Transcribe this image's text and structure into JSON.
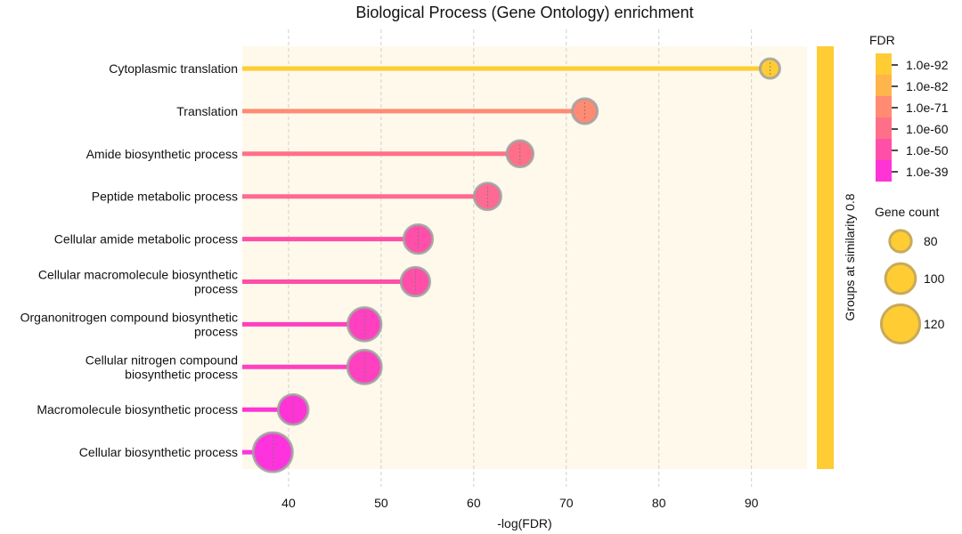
{
  "chart_data": {
    "type": "lollipop",
    "title": "Biological Process (Gene Ontology) enrichment",
    "xlabel": "-log(FDR)",
    "xlim": [
      35,
      96
    ],
    "xticks": [
      40,
      50,
      60,
      70,
      80,
      90
    ],
    "grid": "vertical dashed",
    "group_bar_label": "Groups at similarity 0.8",
    "group_bar_color": "#FFCC33",
    "plot_background": "#FEF9EA",
    "categories": [
      [
        "Cytoplasmic translation"
      ],
      [
        "Translation"
      ],
      [
        "Amide biosynthetic process"
      ],
      [
        "Peptide metabolic process"
      ],
      [
        "Cellular amide metabolic process"
      ],
      [
        "Cellular macromolecule biosynthetic",
        "process"
      ],
      [
        "Organonitrogen compound biosynthetic",
        "process"
      ],
      [
        "Cellular nitrogen compound",
        "biosynthetic process"
      ],
      [
        "Macromolecule biosynthetic process"
      ],
      [
        "Cellular biosynthetic process"
      ]
    ],
    "values": [
      92,
      72,
      65,
      61.5,
      54,
      53.7,
      48.2,
      48.2,
      40.5,
      38.3
    ],
    "gene_counts": [
      75,
      88,
      91,
      92,
      97,
      97,
      108,
      109,
      100,
      122
    ],
    "colors": [
      "#FFCC33",
      "#FF8B73",
      "#FF7088",
      "#FF6A92",
      "#FF4FA8",
      "#FF4FA8",
      "#FF40C0",
      "#FF40C0",
      "#FF33D6",
      "#FF33DD"
    ],
    "fdr_legend": {
      "title": "FDR",
      "labels": [
        "1.0e-92",
        "1.0e-82",
        "1.0e-71",
        "1.0e-60",
        "1.0e-50",
        "1.0e-39"
      ],
      "colors": [
        "#FFCC33",
        "#FFB44C",
        "#FF8B73",
        "#FF7088",
        "#FF4FA8",
        "#FF33D6"
      ]
    },
    "size_legend": {
      "title": "Gene count",
      "values": [
        80,
        100,
        120
      ]
    }
  }
}
